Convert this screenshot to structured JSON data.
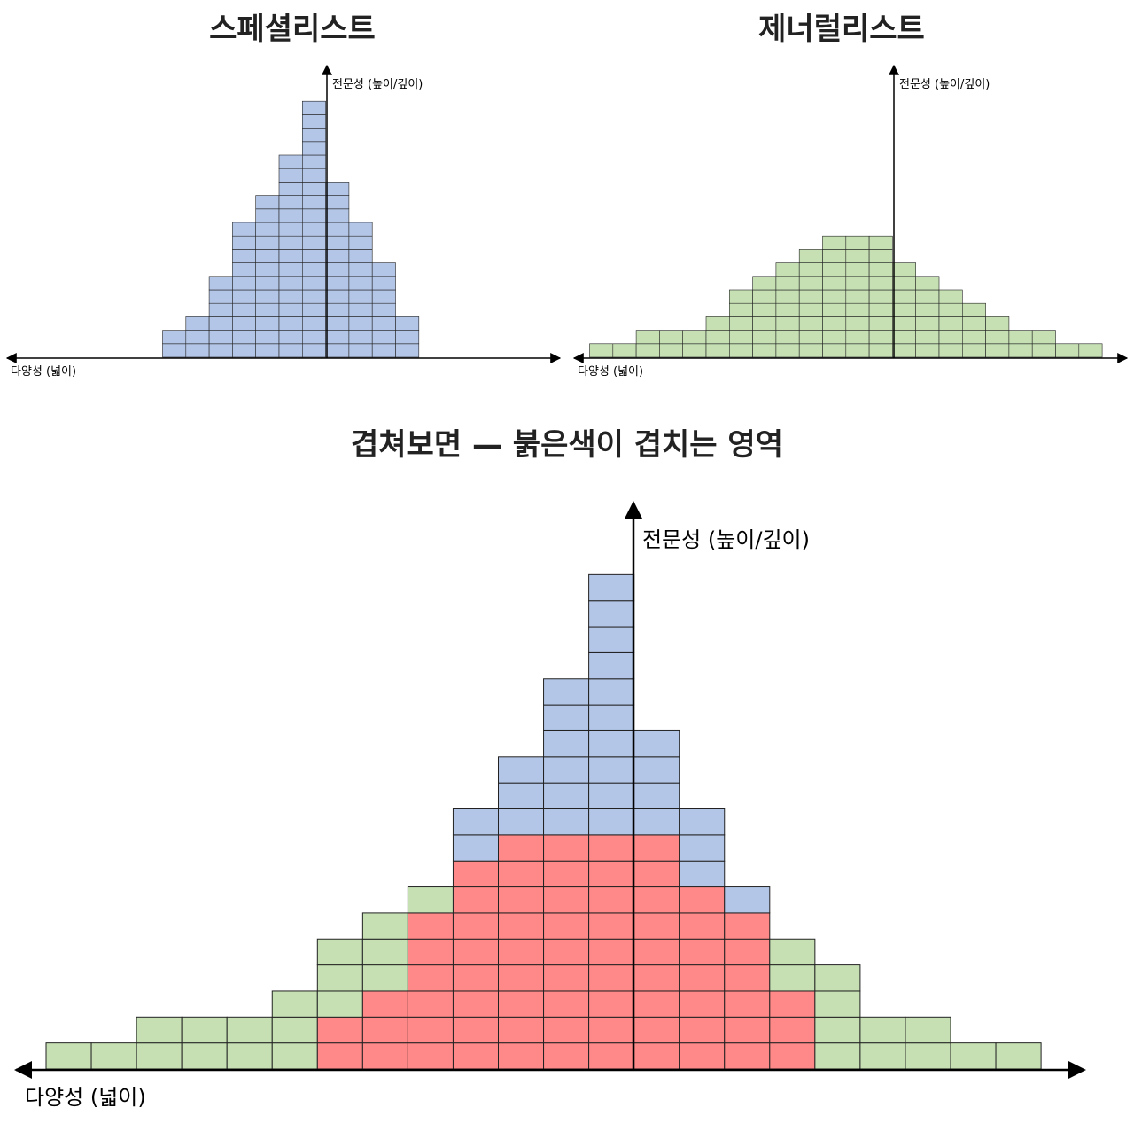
{
  "panels": [
    {
      "title": "스페셜리스트",
      "y_axis_label": "전문성 (높이/깊이)",
      "x_axis_label": "다양성 (넓이)",
      "fill": "#b4c6e7",
      "column_heights": [
        2,
        3,
        6,
        10,
        12,
        15,
        19,
        13,
        10,
        7,
        3
      ]
    },
    {
      "title": "제너럴리스트",
      "y_axis_label": "전문성 (높이/깊이)",
      "x_axis_label": "다양성 (넓이)",
      "fill": "#c6e0b4",
      "column_heights": [
        1,
        1,
        2,
        2,
        2,
        3,
        5,
        6,
        7,
        8,
        9,
        9,
        9,
        7,
        6,
        5,
        4,
        3,
        2,
        2,
        1,
        1
      ]
    }
  ],
  "combined": {
    "title": "겹쳐보면 — 붉은색이 겹치는 영역",
    "y_axis_label": "전문성 (높이/깊이)",
    "x_axis_label": "다양성 (넓이)",
    "colors": {
      "specialist": "#b4c6e7",
      "generalist": "#c6e0b4",
      "overlap": "#ff8888"
    },
    "generalist_heights": [
      1,
      1,
      2,
      2,
      2,
      3,
      5,
      6,
      7,
      7,
      7,
      7,
      7,
      8,
      6,
      6,
      5,
      4,
      2,
      2,
      1,
      1
    ],
    "specialist_heights": [
      0,
      0,
      0,
      0,
      0,
      0,
      0,
      0,
      0,
      10,
      12,
      15,
      19,
      13,
      10,
      7,
      0,
      0,
      0,
      0,
      0,
      0
    ],
    "overlap_heights": [
      0,
      0,
      0,
      0,
      0,
      0,
      2,
      3,
      6,
      8,
      9,
      9,
      9,
      9,
      7,
      6,
      3,
      0,
      0,
      0,
      0,
      0
    ]
  }
}
